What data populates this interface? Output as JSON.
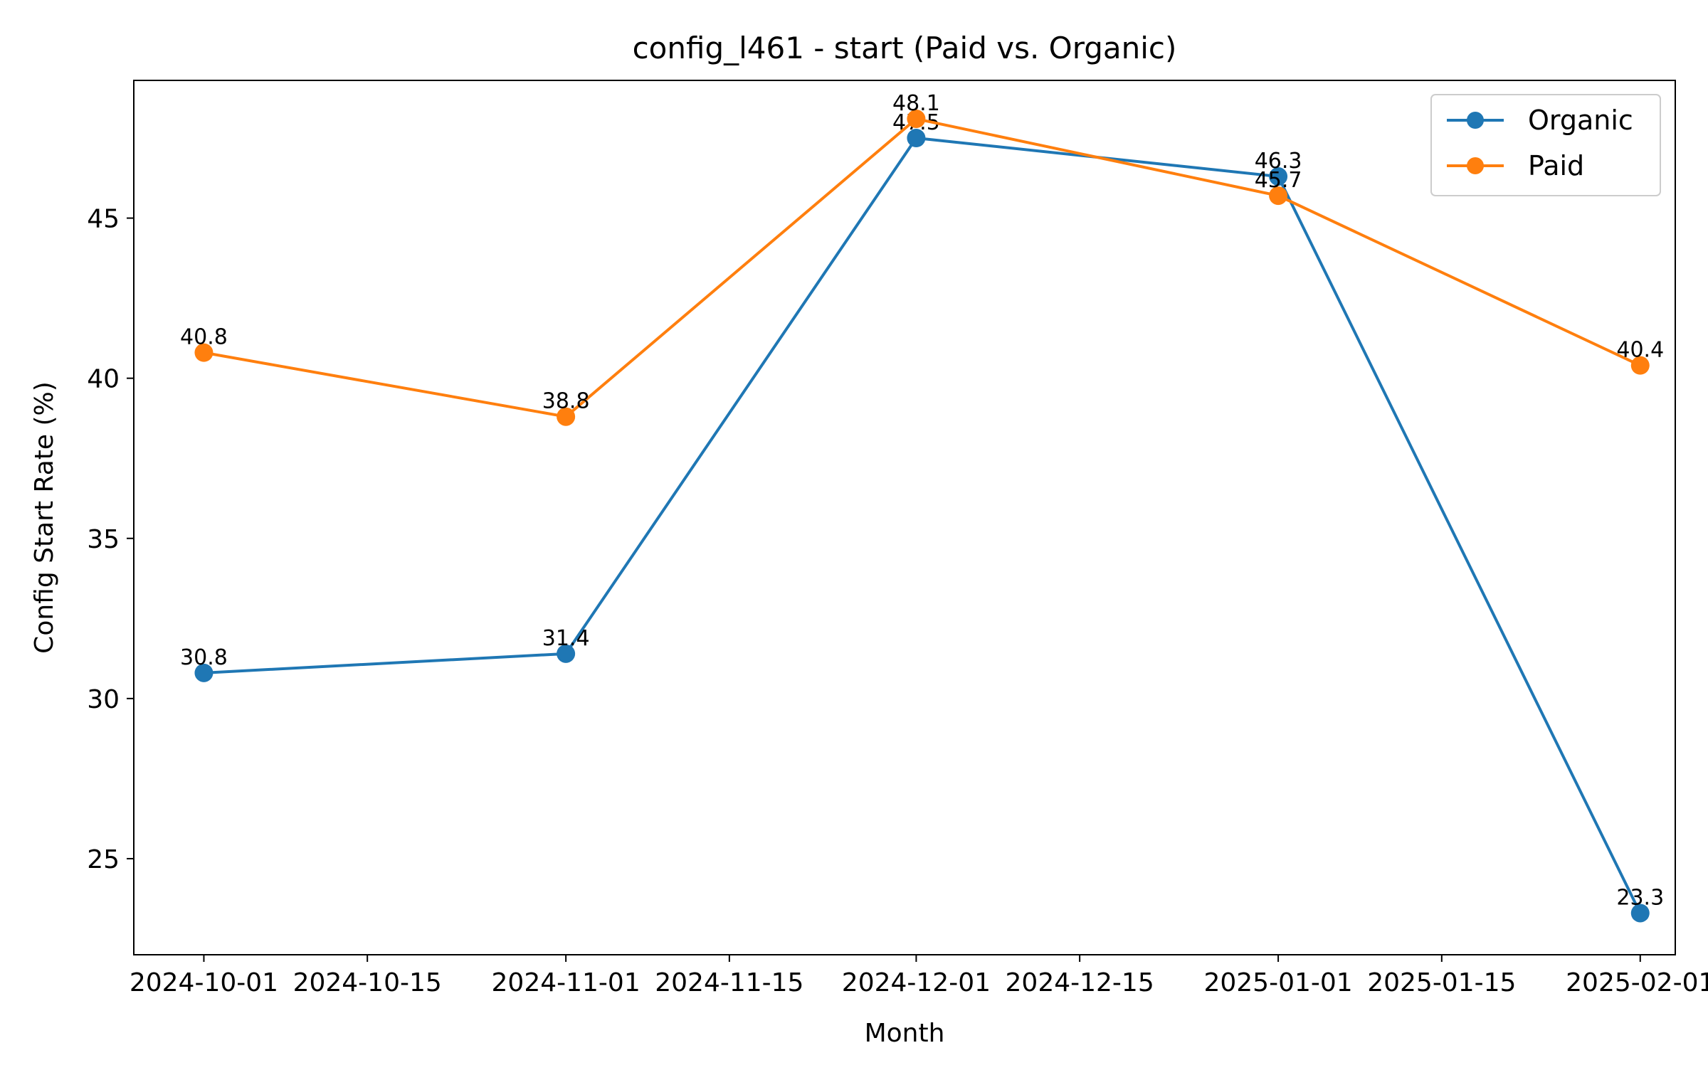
{
  "chart_data": {
    "type": "line",
    "title": "config_l461 - start (Paid vs. Organic)",
    "xlabel": "Month",
    "ylabel": "Config Start Rate (%)",
    "x": [
      "2024-10-01",
      "2024-11-01",
      "2024-12-01",
      "2025-01-01",
      "2025-02-01"
    ],
    "x_ticks": [
      "2024-10-01",
      "2024-10-15",
      "2024-11-01",
      "2024-11-15",
      "2024-12-01",
      "2024-12-15",
      "2025-01-01",
      "2025-01-15",
      "2025-02-01"
    ],
    "y_ticks": [
      25,
      30,
      35,
      40,
      45
    ],
    "xlim": [
      "2024-09-25",
      "2025-02-04"
    ],
    "ylim": [
      22.0,
      49.3
    ],
    "grid": false,
    "legend_position": "top-right",
    "series": [
      {
        "name": "Organic",
        "color": "#1f77b4",
        "values": [
          30.8,
          31.4,
          47.5,
          46.3,
          23.3
        ],
        "labels": [
          "30.8",
          "31.4",
          "47.5",
          "46.3",
          "23.3"
        ]
      },
      {
        "name": "Paid",
        "color": "#ff7f0e",
        "values": [
          40.8,
          38.8,
          48.1,
          45.7,
          40.4
        ],
        "labels": [
          "40.8",
          "38.8",
          "48.1",
          "45.7",
          "40.4"
        ]
      }
    ]
  }
}
